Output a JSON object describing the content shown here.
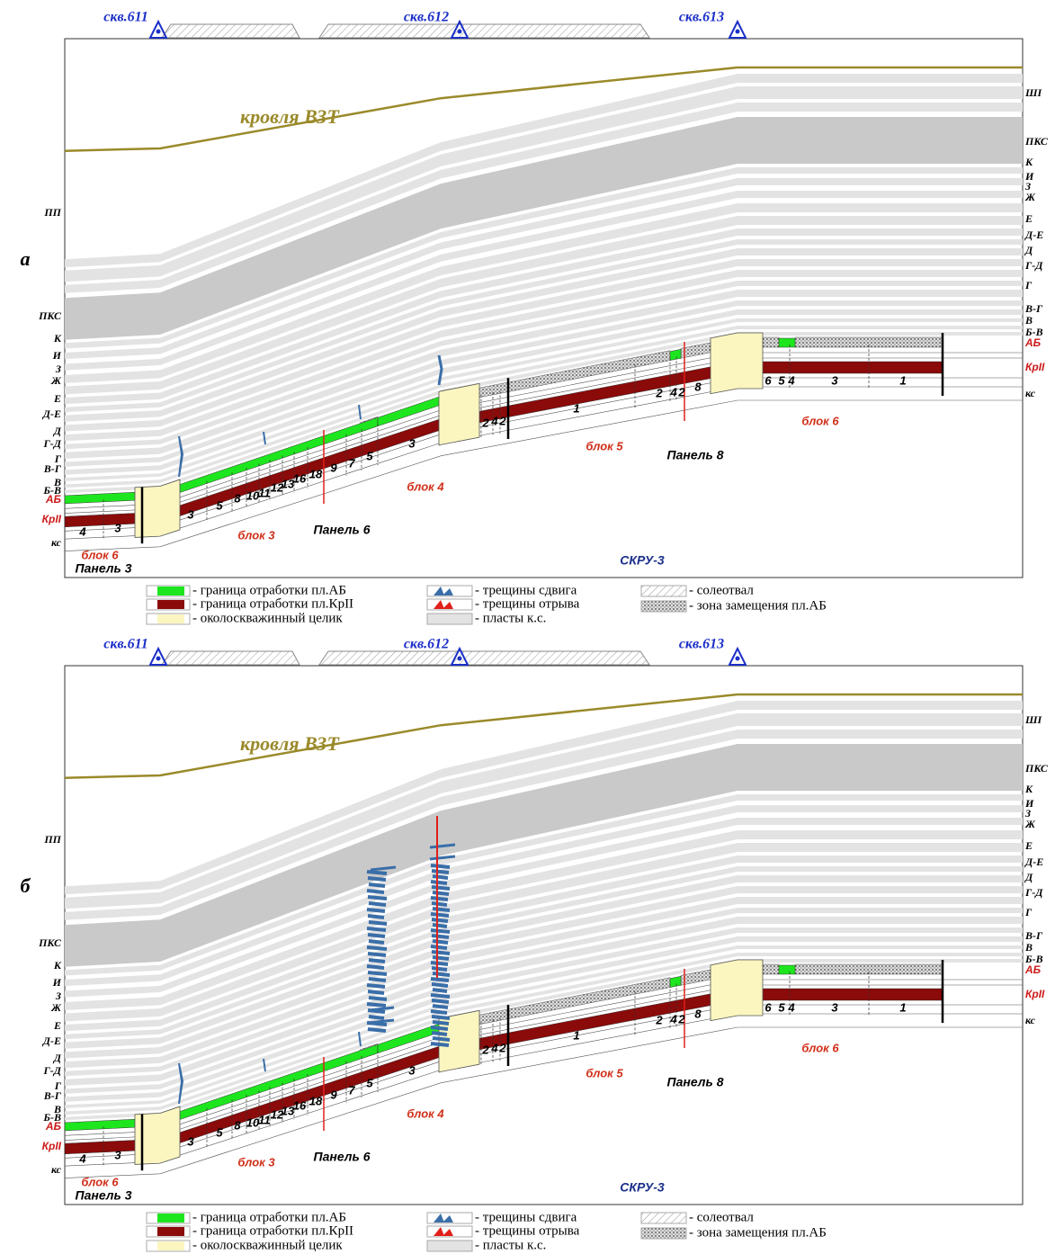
{
  "panels": [
    {
      "letter": "а",
      "wells": [
        "скв.611",
        "скв.612",
        "скв.613"
      ],
      "roof": "кровля ВЗТ",
      "left_labels": [
        "ПП",
        "ПКС",
        "К",
        "И",
        "З",
        "Ж",
        "Е",
        "Д-Е",
        "Д",
        "Г-Д",
        "Г",
        "В-Г",
        "В",
        "Б-В",
        "АБ",
        "КрII",
        "кс"
      ],
      "right_labels": [
        "ШI",
        "ПКС",
        "К",
        "И",
        "З",
        "Ж",
        "Е",
        "Д-Е",
        "Д",
        "Г-Д",
        "Г",
        "В-Г",
        "В",
        "Б-В",
        "АБ",
        "КрII",
        "кс"
      ],
      "numbers": [
        4,
        3,
        3,
        5,
        8,
        10,
        11,
        12,
        13,
        16,
        18,
        9,
        7,
        5,
        3,
        2,
        4,
        2,
        1,
        2,
        4,
        2,
        8,
        6,
        5,
        4,
        3,
        1
      ],
      "blocks": [
        "блок 6",
        "блок 3",
        "блок 4",
        "блок 5",
        "блок 6"
      ],
      "panel_names": [
        "Панель 3",
        "Панель 6",
        "Панель 8"
      ],
      "mine": "СКРУ-3",
      "legend": {
        "col1": [
          "- граница отработки пл.АБ",
          "- граница отработки пл.КрII",
          "- околоскважинный целик"
        ],
        "col2": [
          "- трещины сдвига",
          "- трещины отрыва",
          "- пласты к.с."
        ],
        "col3": [
          "- солеотвал",
          "- зона замещения пл.АБ"
        ]
      }
    },
    {
      "letter": "б",
      "wells": [
        "скв.611",
        "скв.612",
        "скв.613"
      ],
      "roof": "кровля ВЗТ",
      "left_labels": [
        "ПП",
        "ПКС",
        "К",
        "И",
        "З",
        "Ж",
        "Е",
        "Д-Е",
        "Д",
        "Г-Д",
        "Г",
        "В-Г",
        "В",
        "Б-В",
        "АБ",
        "КрII",
        "кс"
      ],
      "right_labels": [
        "ШI",
        "ПКС",
        "К",
        "И",
        "З",
        "Ж",
        "Е",
        "Д-Е",
        "Д",
        "Г-Д",
        "Г",
        "В-Г",
        "В",
        "Б-В",
        "АБ",
        "КрII",
        "кс"
      ],
      "numbers": [
        4,
        3,
        3,
        5,
        8,
        10,
        11,
        12,
        13,
        16,
        18,
        9,
        7,
        5,
        3,
        2,
        4,
        2,
        1,
        2,
        4,
        2,
        8,
        6,
        5,
        4,
        3,
        1
      ],
      "blocks": [
        "блок 6",
        "блок 3",
        "блок 4",
        "блок 5",
        "блок 6"
      ],
      "panel_names": [
        "Панель 3",
        "Панель 6",
        "Панель 8"
      ],
      "mine": "СКРУ-3",
      "legend": {
        "col1": [
          "- граница отработки пл.АБ",
          "- граница отработки пл.КрII",
          "- околоскважинный целик"
        ],
        "col2": [
          "- трещины сдвига",
          "- трещины отрыва",
          "- пласты к.с."
        ],
        "col3": [
          "- солеотвал",
          "- зона замещения пл.АБ"
        ]
      }
    }
  ]
}
